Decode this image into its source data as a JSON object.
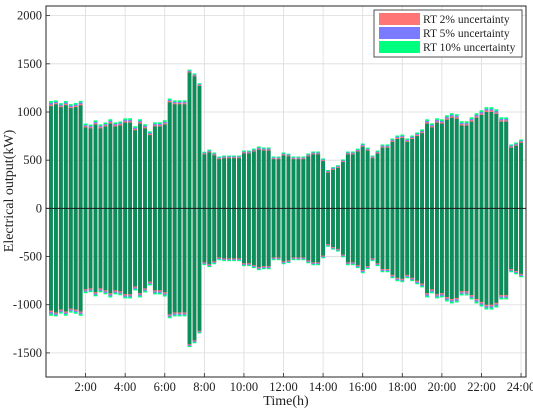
{
  "chart_data": {
    "type": "bar",
    "title": "",
    "xlabel": "Time(h)",
    "ylabel": "Electrical output(kW)",
    "ylim": [
      -1750,
      2100
    ],
    "xlim": [
      0,
      24.25
    ],
    "grid": true,
    "legend_position": "top-right",
    "yticks": [
      2000,
      1500,
      1000,
      500,
      0,
      -500,
      -1000,
      -1500
    ],
    "xtick_labels": [
      "2:00",
      "4:00",
      "6:00",
      "8:00",
      "10:00",
      "12:00",
      "14:00",
      "16:00",
      "18:00",
      "20:00",
      "22:00",
      "24:00"
    ],
    "bar_color": "#0a8f5a",
    "series": [
      {
        "name": "RT 2% uncertainty",
        "color": "#ff7575"
      },
      {
        "name": "RT 5% uncertainty",
        "color": "#7b7bff"
      },
      {
        "name": "RT 10% uncertainty",
        "color": "#00ff7f"
      }
    ],
    "x": [
      0.25,
      0.5,
      0.75,
      1.0,
      1.25,
      1.5,
      1.75,
      2.0,
      2.25,
      2.5,
      2.75,
      3.0,
      3.25,
      3.5,
      3.75,
      4.0,
      4.25,
      4.5,
      4.75,
      5.0,
      5.25,
      5.5,
      5.75,
      6.0,
      6.25,
      6.5,
      6.75,
      7.0,
      7.25,
      7.5,
      7.75,
      8.0,
      8.25,
      8.5,
      8.75,
      9.0,
      9.25,
      9.5,
      9.75,
      10.0,
      10.25,
      10.5,
      10.75,
      11.0,
      11.25,
      11.5,
      11.75,
      12.0,
      12.25,
      12.5,
      12.75,
      13.0,
      13.25,
      13.5,
      13.75,
      14.0,
      14.25,
      14.5,
      14.75,
      15.0,
      15.25,
      15.5,
      15.75,
      16.0,
      16.25,
      16.5,
      16.75,
      17.0,
      17.25,
      17.5,
      17.75,
      18.0,
      18.25,
      18.5,
      18.75,
      19.0,
      19.25,
      19.5,
      19.75,
      20.0,
      20.25,
      20.5,
      20.75,
      21.0,
      21.25,
      21.5,
      21.75,
      22.0,
      22.25,
      22.5,
      22.75,
      23.0,
      23.25,
      23.5,
      23.75,
      24.0
    ],
    "values": [
      1060,
      1080,
      1050,
      1070,
      1040,
      1050,
      1070,
      840,
      830,
      870,
      830,
      850,
      880,
      850,
      860,
      890,
      890,
      810,
      880,
      830,
      760,
      850,
      850,
      870,
      1100,
      1080,
      1080,
      1080,
      1410,
      1370,
      1270,
      560,
      580,
      550,
      510,
      520,
      520,
      520,
      520,
      570,
      570,
      590,
      610,
      600,
      600,
      510,
      510,
      550,
      540,
      510,
      510,
      510,
      540,
      560,
      560,
      490,
      370,
      400,
      420,
      480,
      560,
      560,
      590,
      640,
      600,
      520,
      570,
      630,
      630,
      690,
      720,
      730,
      690,
      720,
      750,
      780,
      880,
      840,
      890,
      880,
      920,
      940,
      930,
      860,
      860,
      900,
      940,
      970,
      1000,
      1000,
      980,
      900,
      900,
      630,
      650,
      680
    ],
    "uncertainty": [
      55,
      40,
      42,
      44,
      42,
      44,
      45,
      40,
      40,
      43,
      42,
      42,
      45,
      42,
      42,
      44,
      45,
      42,
      45,
      43,
      40,
      43,
      43,
      45,
      40,
      41,
      41,
      41,
      30,
      30,
      28,
      28,
      30,
      30,
      28,
      28,
      28,
      28,
      28,
      30,
      30,
      30,
      32,
      32,
      32,
      28,
      28,
      30,
      28,
      28,
      28,
      28,
      30,
      30,
      30,
      28,
      28,
      28,
      28,
      28,
      30,
      30,
      30,
      33,
      30,
      28,
      30,
      33,
      33,
      35,
      36,
      36,
      35,
      36,
      38,
      40,
      44,
      42,
      45,
      44,
      46,
      47,
      47,
      44,
      44,
      45,
      47,
      48,
      50,
      50,
      49,
      45,
      45,
      33,
      34,
      35
    ]
  }
}
